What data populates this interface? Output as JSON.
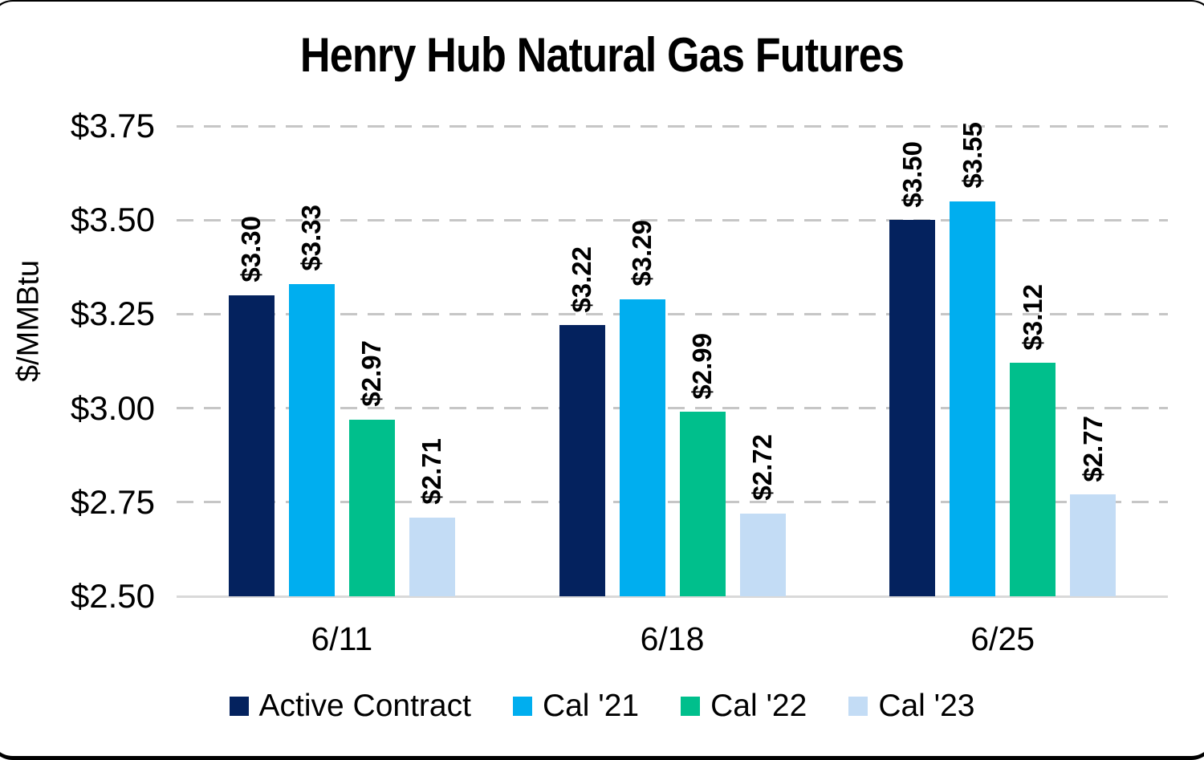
{
  "chart_data": {
    "type": "bar",
    "title": "Henry Hub Natural Gas Futures",
    "ylabel": "$/MMBtu",
    "xlabel": "",
    "categories": [
      "6/11",
      "6/18",
      "6/25"
    ],
    "series": [
      {
        "name": "Active Contract",
        "color": "#04225E",
        "values": [
          3.3,
          3.22,
          3.5
        ]
      },
      {
        "name": "Cal '21",
        "color": "#00AEEF",
        "values": [
          3.33,
          3.29,
          3.55
        ]
      },
      {
        "name": "Cal '22",
        "color": "#00BF8C",
        "values": [
          2.97,
          2.99,
          3.12
        ]
      },
      {
        "name": "Cal '23",
        "color": "#C3DCF5",
        "values": [
          2.71,
          2.72,
          2.77
        ]
      }
    ],
    "value_prefix": "$",
    "value_labels": {
      "6/11": [
        "$3.30",
        "$3.33",
        "$2.97",
        "$2.71"
      ],
      "6/18": [
        "$3.22",
        "$3.29",
        "$2.99",
        "$2.72"
      ],
      "6/25": [
        "$3.50",
        "$3.55",
        "$3.12",
        "$2.77"
      ]
    },
    "ylim": [
      2.5,
      3.75
    ],
    "ytick_step": 0.25,
    "yticks": [
      "$3.75",
      "$3.50",
      "$3.25",
      "$3.00",
      "$2.75",
      "$2.50"
    ],
    "grid": {
      "orientation": "horizontal",
      "style": "dashed",
      "color": "#C6C6C6",
      "baseline_color": "#D9D9D9"
    },
    "legend_position": "bottom",
    "value_label_rotation": "90-degrees-ccw"
  }
}
